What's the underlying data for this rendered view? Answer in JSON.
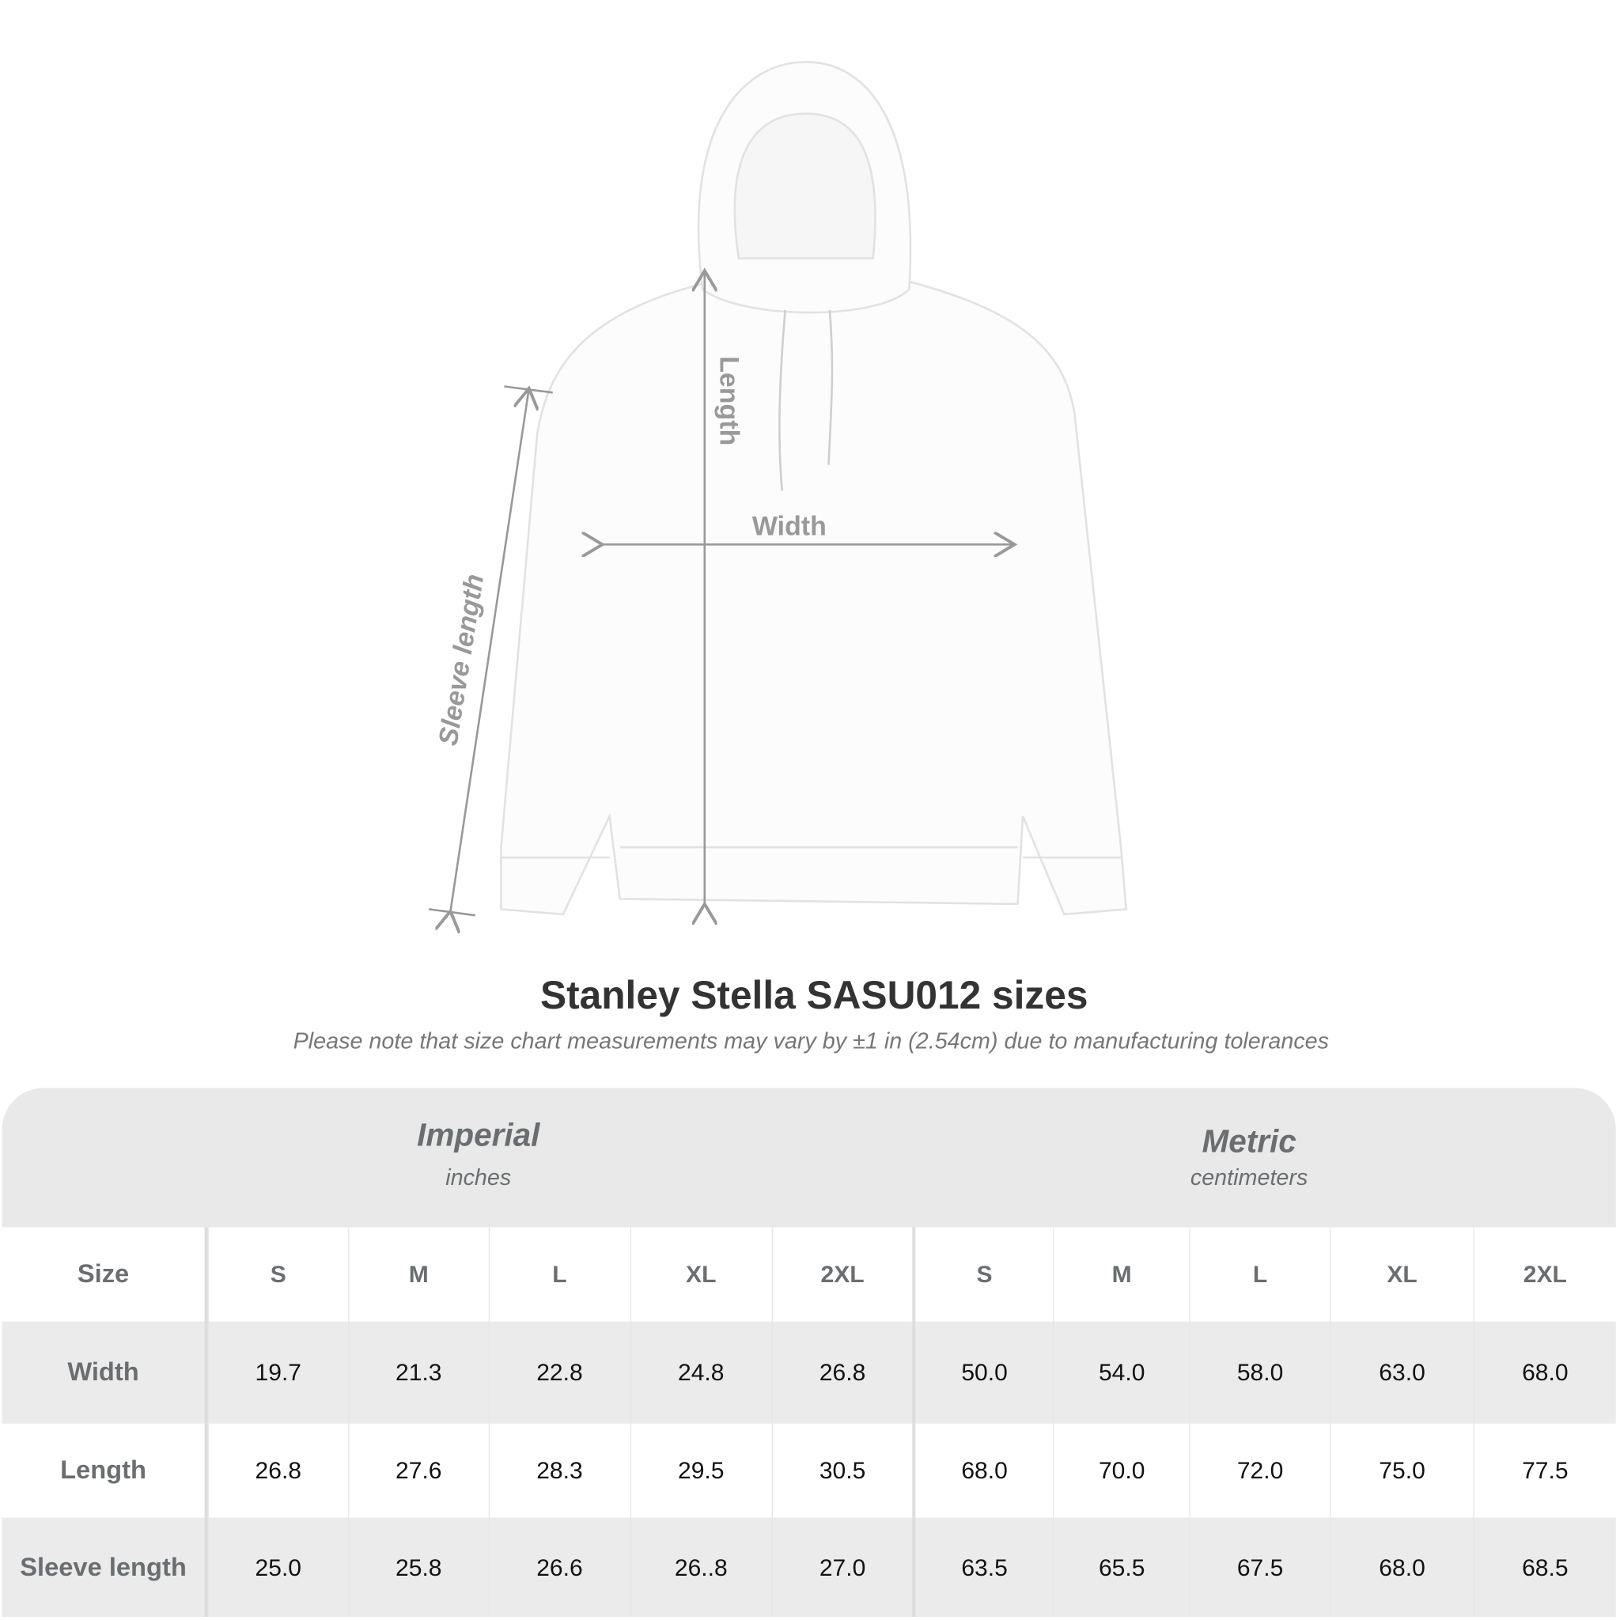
{
  "diagram": {
    "labels": {
      "length": "Length",
      "width": "Width",
      "sleeve": "Sleeve length"
    },
    "arrow_color": "#999999"
  },
  "title": "Stanley Stella SASU012  sizes",
  "note": "Please note that size chart measurements may vary by ±1 in (2.54cm) due to manufacturing tolerances",
  "table": {
    "groups": [
      {
        "name": "Imperial",
        "unit": "inches"
      },
      {
        "name": "Metric",
        "unit": "centimeters"
      }
    ],
    "size_label": "Size",
    "sizes": [
      "S",
      "M",
      "L",
      "XL",
      "2XL",
      "S",
      "M",
      "L",
      "XL",
      "2XL"
    ],
    "rows": [
      {
        "label": "Width",
        "values": [
          "19.7",
          "21.3",
          "22.8",
          "24.8",
          "26.8",
          "50.0",
          "54.0",
          "58.0",
          "63.0",
          "68.0"
        ]
      },
      {
        "label": "Length",
        "values": [
          "26.8",
          "27.6",
          "28.3",
          "29.5",
          "30.5",
          "68.0",
          "70.0",
          "72.0",
          "75.0",
          "77.5"
        ]
      },
      {
        "label": "Sleeve length",
        "values": [
          "25.0",
          "25.8",
          "26.6",
          "26..8",
          "27.0",
          "63.5",
          "65.5",
          "67.5",
          "68.0",
          "68.5"
        ]
      }
    ],
    "colors": {
      "header_bg": "#e9e9e9",
      "stripe_bg": "#ebebeb",
      "label_text": "#6b6e70"
    }
  }
}
